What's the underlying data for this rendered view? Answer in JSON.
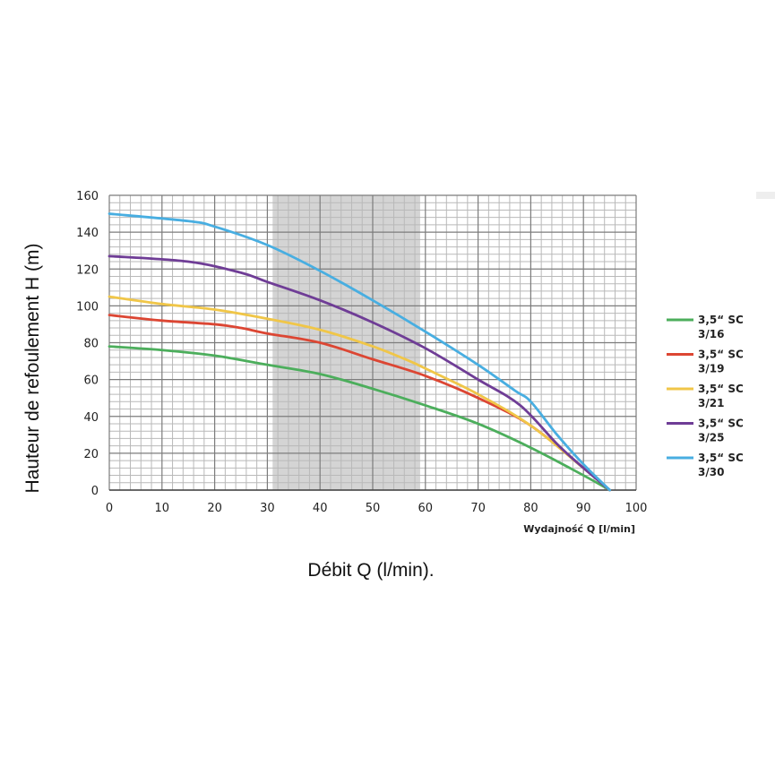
{
  "chart_data": {
    "type": "line",
    "xlabel": "Wydajność Q [l/min]",
    "ylabel": "Hauteur de refoulement H (m)",
    "caption": "Débit Q (l/min).",
    "xlim": [
      0,
      100
    ],
    "ylim": [
      0,
      160
    ],
    "x_ticks": [
      "0",
      "10",
      "20",
      "30",
      "40",
      "50",
      "60",
      "70",
      "80",
      "90",
      "100"
    ],
    "y_ticks": [
      "0",
      "20",
      "40",
      "60",
      "80",
      "100",
      "120",
      "140",
      "160"
    ],
    "grid": true,
    "shaded_range": [
      31,
      59
    ],
    "legend_position": "right",
    "series": [
      {
        "name_line1": "3,5“ SC",
        "name_line2": "3/16",
        "color": "#4cae5c",
        "points": [
          [
            0,
            78
          ],
          [
            10,
            76
          ],
          [
            20,
            73
          ],
          [
            30,
            68
          ],
          [
            40,
            63
          ],
          [
            50,
            55
          ],
          [
            60,
            46
          ],
          [
            70,
            36
          ],
          [
            80,
            23
          ],
          [
            90,
            8
          ],
          [
            95,
            0
          ]
        ]
      },
      {
        "name_line1": "3,5“ SC",
        "name_line2": "3/19",
        "color": "#dc4633",
        "points": [
          [
            0,
            95
          ],
          [
            10,
            92
          ],
          [
            20,
            90
          ],
          [
            25,
            88
          ],
          [
            30,
            85
          ],
          [
            40,
            80
          ],
          [
            50,
            71
          ],
          [
            60,
            62
          ],
          [
            70,
            50
          ],
          [
            80,
            35
          ],
          [
            90,
            12
          ],
          [
            95,
            0
          ]
        ]
      },
      {
        "name_line1": "3,5“ SC",
        "name_line2": "3/21",
        "color": "#f0c648",
        "points": [
          [
            0,
            105
          ],
          [
            10,
            101
          ],
          [
            20,
            98
          ],
          [
            30,
            93
          ],
          [
            40,
            87
          ],
          [
            50,
            78
          ],
          [
            57,
            70
          ],
          [
            60,
            66
          ],
          [
            70,
            52
          ],
          [
            80,
            35
          ],
          [
            90,
            12
          ],
          [
            95,
            0
          ]
        ]
      },
      {
        "name_line1": "3,5“ SC",
        "name_line2": "3/25",
        "color": "#6f3d96",
        "points": [
          [
            0,
            127
          ],
          [
            15,
            124
          ],
          [
            25,
            118
          ],
          [
            30,
            113
          ],
          [
            40,
            103
          ],
          [
            50,
            91
          ],
          [
            60,
            77
          ],
          [
            70,
            60
          ],
          [
            78,
            46
          ],
          [
            85,
            25
          ],
          [
            90,
            12
          ],
          [
            95,
            0
          ]
        ]
      },
      {
        "name_line1": "3,5“ SC",
        "name_line2": "3/30",
        "color": "#48aee1",
        "points": [
          [
            0,
            150
          ],
          [
            15,
            146
          ],
          [
            20,
            143
          ],
          [
            30,
            133
          ],
          [
            40,
            119
          ],
          [
            50,
            103
          ],
          [
            60,
            86
          ],
          [
            70,
            68
          ],
          [
            77,
            54
          ],
          [
            80,
            48
          ],
          [
            85,
            30
          ],
          [
            90,
            14
          ],
          [
            95,
            0
          ]
        ]
      }
    ]
  }
}
